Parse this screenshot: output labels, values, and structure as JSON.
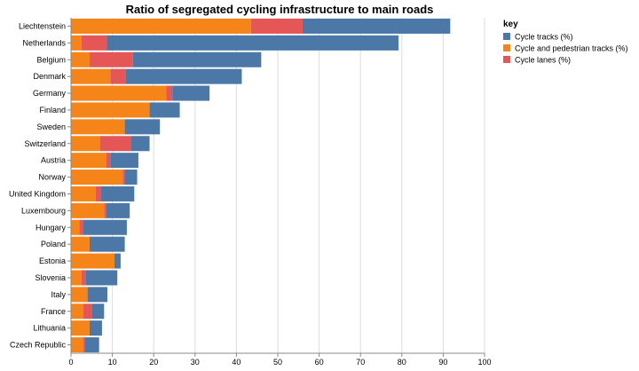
{
  "chart_data": {
    "type": "bar",
    "orientation": "horizontal",
    "stacked": true,
    "title": "Ratio of segregated cycling infrastructure to main roads",
    "xlabel": "",
    "ylabel": "",
    "xlim": [
      0,
      100
    ],
    "xticks": [
      0,
      10,
      20,
      30,
      40,
      50,
      60,
      70,
      80,
      90,
      100
    ],
    "grid": true,
    "legend_position": "right",
    "legend_title": "key",
    "legend_order": [
      "Cycle tracks (%)",
      "Cycle and pedestrian tracks (%)",
      "Cycle lanes (%)"
    ],
    "categories": [
      "Liechtenstein",
      "Netherlands",
      "Belgium",
      "Denmark",
      "Germany",
      "Finland",
      "Sweden",
      "Switzerland",
      "Austria",
      "Norway",
      "United Kingdom",
      "Luxembourg",
      "Hungary",
      "Poland",
      "Estonia",
      "Slovenia",
      "Italy",
      "France",
      "Lithuania",
      "Czech Republic"
    ],
    "series": [
      {
        "name": "Cycle and pedestrian tracks (%)",
        "color": "#f58518",
        "values": [
          43.5,
          2.5,
          4.5,
          9.5,
          23,
          19,
          13,
          7,
          8.5,
          12.5,
          6,
          8,
          2,
          4.5,
          10.5,
          2.5,
          4,
          3,
          4.5,
          3
        ]
      },
      {
        "name": "Cycle lanes (%)",
        "color": "#e45756",
        "values": [
          12.5,
          6.2,
          10.5,
          3.8,
          1.5,
          0,
          0,
          7.5,
          1,
          0.5,
          1.3,
          0.5,
          1,
          0,
          0,
          1,
          0,
          2,
          0,
          0.3
        ]
      },
      {
        "name": "Cycle tracks (%)",
        "color": "#4c78a8",
        "values": [
          35.7,
          70.5,
          31,
          28,
          9,
          7.3,
          8.5,
          4.5,
          6.8,
          3,
          8,
          5.7,
          10.5,
          8.5,
          1.5,
          7.7,
          4.8,
          3,
          3,
          3.5
        ]
      }
    ]
  }
}
